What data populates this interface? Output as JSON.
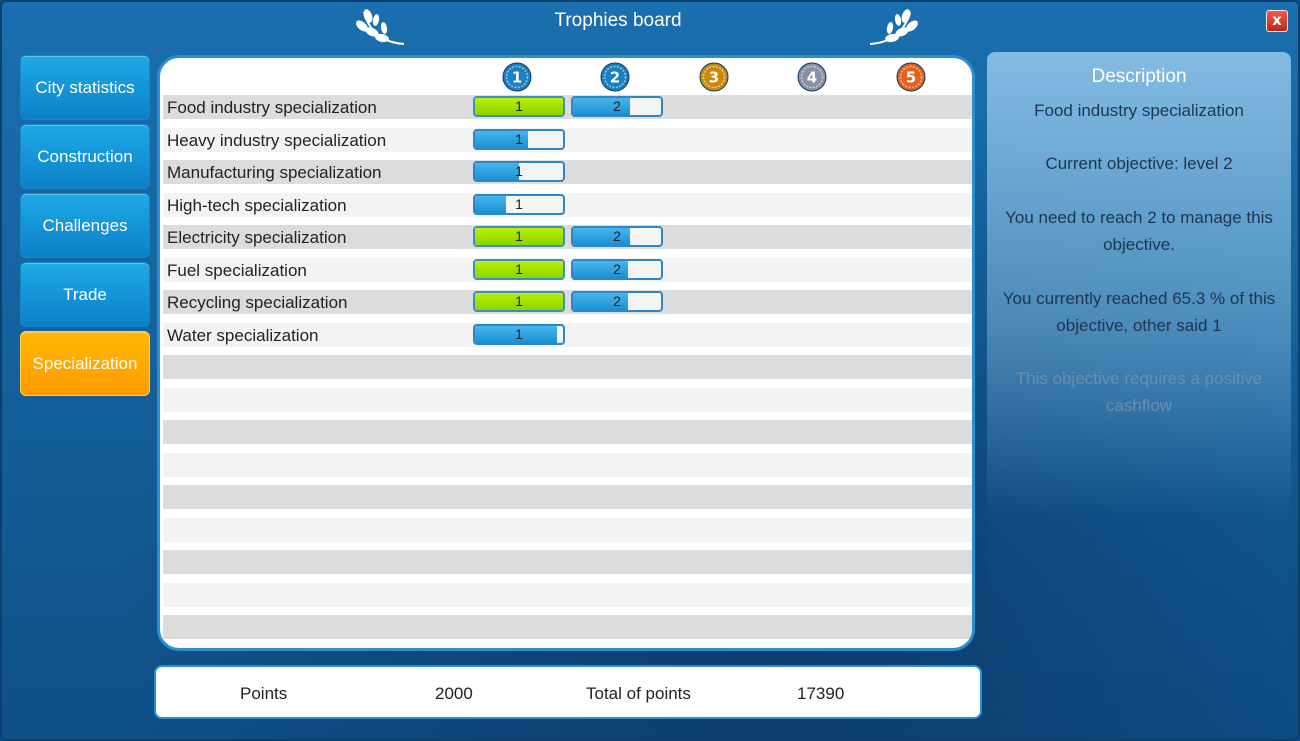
{
  "window": {
    "title": "Trophies board",
    "close_label": "x"
  },
  "sidebar": {
    "items": [
      {
        "label": "City statistics",
        "active": false
      },
      {
        "label": "Construction",
        "active": false
      },
      {
        "label": "Challenges",
        "active": false
      },
      {
        "label": "Trade",
        "active": false
      },
      {
        "label": "Specialization",
        "active": true
      }
    ]
  },
  "table": {
    "levels": [
      {
        "label": "1",
        "color": "#1b7fc0"
      },
      {
        "label": "2",
        "color": "#1b7fc0"
      },
      {
        "label": "3",
        "color": "#c98a0c"
      },
      {
        "label": "4",
        "color": "#8a8fa6"
      },
      {
        "label": "5",
        "color": "#e0621c"
      }
    ],
    "rows": [
      {
        "label": "Food industry specialization",
        "bars": [
          {
            "label": "1",
            "progress": 1.0,
            "done": true
          },
          {
            "label": "2",
            "progress": 0.65,
            "done": false
          }
        ]
      },
      {
        "label": "Heavy industry specialization",
        "bars": [
          {
            "label": "1",
            "progress": 0.6,
            "done": false
          }
        ]
      },
      {
        "label": "Manufacturing specialization",
        "bars": [
          {
            "label": "1",
            "progress": 0.5,
            "done": false
          }
        ]
      },
      {
        "label": "High-tech specialization",
        "bars": [
          {
            "label": "1",
            "progress": 0.35,
            "done": false
          }
        ]
      },
      {
        "label": "Electricity specialization",
        "bars": [
          {
            "label": "1",
            "progress": 1.0,
            "done": true
          },
          {
            "label": "2",
            "progress": 0.65,
            "done": false
          }
        ]
      },
      {
        "label": "Fuel specialization",
        "bars": [
          {
            "label": "1",
            "progress": 1.0,
            "done": true
          },
          {
            "label": "2",
            "progress": 0.62,
            "done": false
          }
        ]
      },
      {
        "label": "Recycling specialization",
        "bars": [
          {
            "label": "1",
            "progress": 1.0,
            "done": true
          },
          {
            "label": "2",
            "progress": 0.62,
            "done": false
          }
        ]
      },
      {
        "label": "Water specialization",
        "bars": [
          {
            "label": "1",
            "progress": 0.93,
            "done": false
          }
        ]
      }
    ]
  },
  "description": {
    "title": "Description",
    "lines": [
      "Food industry specialization",
      "Current objective: level 2",
      "You need to reach 2  to manage this objective.",
      "You currently reached 65.3 % of this objective, other said 1",
      "This objective requires a positive cashflow"
    ]
  },
  "footer": {
    "points_label": "Points",
    "points_value": "2000",
    "total_label": "Total of points",
    "total_value": "17390"
  }
}
